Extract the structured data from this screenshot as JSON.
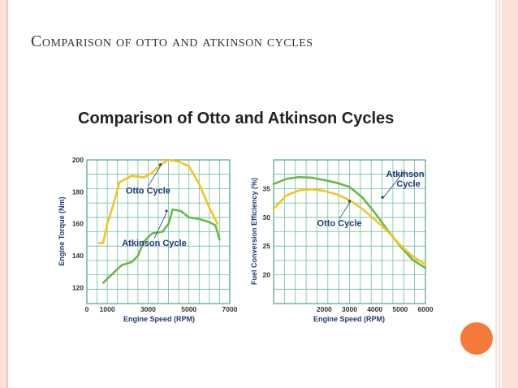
{
  "slide": {
    "title": "Comparison of otto and atkinson cycles",
    "figure_title": "Comparison of Otto and Atkinson Cycles"
  },
  "colors": {
    "otto": "#f2c526",
    "atkinson": "#6bb84a",
    "grid": "#6cc09a",
    "accent_dot": "#f47b3a"
  },
  "icons": {
    "accent_dot": "orange-circle-icon"
  },
  "chart_data": [
    {
      "type": "line",
      "xlabel": "Engine Speed (RPM)",
      "ylabel": "Engine Torque (Nm)",
      "xlim": [
        0,
        7000
      ],
      "ylim": [
        110,
        200
      ],
      "xticks": [
        {
          "v": 0,
          "label": "0"
        },
        {
          "v": 1000,
          "label": "1000"
        },
        {
          "v": 3000,
          "label": "3000"
        },
        {
          "v": 5000,
          "label": "5000"
        },
        {
          "v": 7000,
          "label": "7000"
        }
      ],
      "yticks": [
        {
          "v": 120,
          "label": "120"
        },
        {
          "v": 140,
          "label": "140"
        },
        {
          "v": 160,
          "label": "160"
        },
        {
          "v": 180,
          "label": "180"
        },
        {
          "v": 200,
          "label": "200"
        }
      ],
      "grid": true,
      "annotations": [
        {
          "text": "Otto Cycle",
          "series": "otto",
          "x": 3000,
          "y": 179,
          "arrow_to": [
            3600,
            197
          ]
        },
        {
          "text": "Atkinson Cycle",
          "series": "atkinson",
          "x": 3300,
          "y": 146,
          "arrow_to": [
            3900,
            168
          ]
        }
      ],
      "series": [
        {
          "name": "Otto Cycle",
          "key": "otto",
          "x": [
            600,
            800,
            1000,
            1300,
            1600,
            2200,
            2800,
            3200,
            3600,
            4000,
            4500,
            5000,
            5500,
            6000,
            6400
          ],
          "y": [
            148,
            148,
            160,
            172,
            186,
            190,
            189,
            192,
            197,
            200,
            199,
            196,
            185,
            170,
            160
          ]
        },
        {
          "name": "Atkinson Cycle",
          "key": "atkinson",
          "x": [
            800,
            1200,
            1700,
            2200,
            2500,
            2800,
            3200,
            3700,
            4000,
            4200,
            4600,
            5000,
            5500,
            6000,
            6300,
            6500
          ],
          "y": [
            123,
            128,
            134,
            136,
            140,
            149,
            154,
            155,
            160,
            169,
            168,
            164,
            163,
            161,
            159,
            150
          ]
        }
      ]
    },
    {
      "type": "line",
      "xlabel": "Engine Speed (RPM)",
      "ylabel": "Fuel Conversion Efficiency (%)",
      "xlim": [
        0,
        6000
      ],
      "ylim": [
        15,
        40
      ],
      "xticks": [
        {
          "v": 2000,
          "label": "2000"
        },
        {
          "v": 3000,
          "label": "3000"
        },
        {
          "v": 4000,
          "label": "4000"
        },
        {
          "v": 5000,
          "label": "5000"
        },
        {
          "v": 6000,
          "label": "6000"
        }
      ],
      "yticks": [
        {
          "v": 20,
          "label": "20"
        },
        {
          "v": 25,
          "label": "25"
        },
        {
          "v": 30,
          "label": "30"
        },
        {
          "v": 35,
          "label": "35"
        }
      ],
      "grid": true,
      "annotations": [
        {
          "text": "Atkinson",
          "text2": "Cycle",
          "series": "atkinson",
          "x": 5200,
          "y": 37,
          "arrow_to": [
            4300,
            33.5
          ]
        },
        {
          "text": "Otto Cycle",
          "series": "otto",
          "x": 2600,
          "y": 28.5,
          "arrow_to": [
            3000,
            32.8
          ]
        }
      ],
      "series": [
        {
          "name": "Atkinson Cycle",
          "key": "atkinson",
          "x": [
            0,
            500,
            1000,
            1500,
            2000,
            2500,
            3000,
            3500,
            4000,
            4500,
            5000,
            5500,
            6000
          ],
          "y": [
            35.8,
            36.7,
            37.0,
            36.9,
            36.5,
            36.0,
            35.3,
            33.5,
            30.8,
            27.8,
            25.0,
            22.6,
            21.2
          ]
        },
        {
          "name": "Otto Cycle",
          "key": "otto",
          "x": [
            0,
            500,
            1000,
            1500,
            2000,
            2500,
            3000,
            3500,
            4000,
            4500,
            5000,
            5500,
            6000
          ],
          "y": [
            31.5,
            33.8,
            34.7,
            34.9,
            34.6,
            34.0,
            33.0,
            31.5,
            29.6,
            27.6,
            25.2,
            23.2,
            21.8
          ]
        }
      ]
    }
  ]
}
